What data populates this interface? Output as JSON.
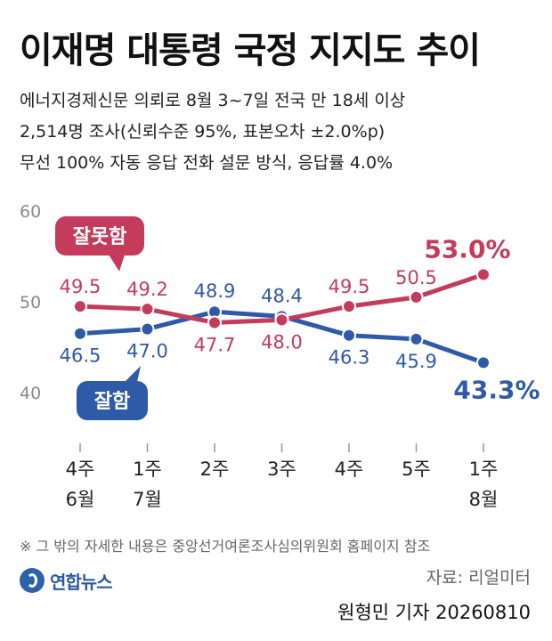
{
  "title": "이재명 대통령 국정 지지도 추이",
  "subtitle": {
    "line1": "에너지경제신문 의뢰로 8월 3~7일 전국 만 18세 이상",
    "line2": "2,514명 조사(신뢰수준 95%, 표본오차 ±2.0%p)",
    "line3": "무선 100% 자동 응답 전화 설문 방식, 응답률 4.0%"
  },
  "chart_data": {
    "type": "line",
    "categories": [
      [
        "4주",
        "6월"
      ],
      [
        "1주",
        "7월"
      ],
      [
        "2주"
      ],
      [
        "3주"
      ],
      [
        "4주"
      ],
      [
        "5주"
      ],
      [
        "1주",
        "8월"
      ]
    ],
    "series": [
      {
        "name": "잘못함",
        "color": "#c43b5c",
        "values": [
          49.5,
          49.2,
          47.7,
          48.0,
          49.5,
          50.5,
          53.0
        ],
        "labels": [
          "49.5",
          "49.2",
          "47.7",
          "48.0",
          "49.5",
          "50.5",
          "53.0%"
        ]
      },
      {
        "name": "잘함",
        "color": "#2e5aa8",
        "values": [
          46.5,
          47.0,
          48.9,
          48.4,
          46.3,
          45.9,
          43.3
        ],
        "labels": [
          "46.5",
          "47.0",
          "48.9",
          "48.4",
          "46.3",
          "45.9",
          "43.3%"
        ]
      }
    ],
    "ylim": [
      40,
      60
    ],
    "yticks": [
      "40",
      "50",
      "60"
    ],
    "grid": false,
    "legend": "callout"
  },
  "footnote": "※ 그 밖의 자세한 내용은 중앙선거여론조사심의위원회 홈페이지 참조",
  "logo_text": "연합뉴스",
  "source": "자료: 리얼미터",
  "byline": "원형민 기자  20260810"
}
